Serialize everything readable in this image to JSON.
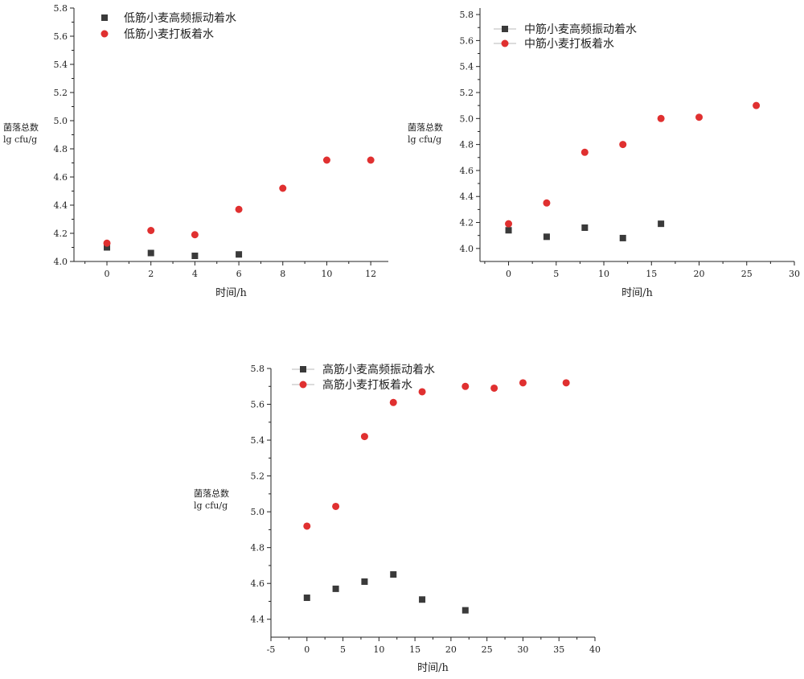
{
  "colors": {
    "series_sq": "#3a3a3a",
    "series_dot": "#e03030",
    "axis": "#222222",
    "legend_line": "#b8b8b8"
  },
  "chart_data": [
    {
      "id": "chart-1",
      "type": "scatter",
      "xlabel": "时间/h",
      "ylabel_lines": [
        "菌落总数",
        "lg cfu/g"
      ],
      "xlim": [
        -1.5,
        12.8
      ],
      "ylim": [
        4.0,
        5.8
      ],
      "xticks": [
        0,
        2,
        4,
        6,
        8,
        10,
        12
      ],
      "yticks": [
        4.0,
        4.2,
        4.4,
        4.6,
        4.8,
        5.0,
        5.2,
        5.4,
        5.6,
        5.8
      ],
      "legend_position": "top-left",
      "legend_has_line": false,
      "series": [
        {
          "name": "低筋小麦高频振动着水",
          "marker": "square",
          "color": "#3a3a3a",
          "x": [
            0,
            2,
            4,
            6
          ],
          "y": [
            4.1,
            4.06,
            4.04,
            4.05
          ]
        },
        {
          "name": "低筋小麦打板着水",
          "marker": "circle",
          "color": "#e03030",
          "x": [
            0,
            2,
            4,
            6,
            8,
            10,
            12
          ],
          "y": [
            4.13,
            4.22,
            4.19,
            4.37,
            4.52,
            4.72,
            4.72
          ]
        }
      ]
    },
    {
      "id": "chart-2",
      "type": "scatter",
      "xlabel": "时间/h",
      "ylabel_lines": [
        "菌落总数",
        "lg cfu/g"
      ],
      "xlim": [
        -3,
        30
      ],
      "ylim": [
        3.9,
        5.85
      ],
      "xticks": [
        0,
        5,
        10,
        15,
        20,
        25,
        30
      ],
      "yticks": [
        4.0,
        4.2,
        4.4,
        4.6,
        4.8,
        5.0,
        5.2,
        5.4,
        5.6,
        5.8
      ],
      "legend_position": "top-left",
      "legend_has_line": true,
      "series": [
        {
          "name": "中筋小麦高频振动着水",
          "marker": "square",
          "color": "#3a3a3a",
          "x": [
            0,
            4,
            8,
            12,
            16
          ],
          "y": [
            4.14,
            4.09,
            4.16,
            4.08,
            4.19
          ]
        },
        {
          "name": "中筋小麦打板着水",
          "marker": "circle",
          "color": "#e03030",
          "x": [
            0,
            4,
            8,
            12,
            16,
            20,
            26
          ],
          "y": [
            4.19,
            4.35,
            4.74,
            4.8,
            5.0,
            5.01,
            5.1
          ]
        }
      ]
    },
    {
      "id": "chart-3",
      "type": "scatter",
      "xlabel": "时间/h",
      "ylabel_lines": [
        "菌落总数",
        "lg cfu/g"
      ],
      "xlim": [
        -5,
        40
      ],
      "ylim": [
        4.3,
        5.8
      ],
      "xticks": [
        -5,
        0,
        5,
        10,
        15,
        20,
        25,
        30,
        35,
        40
      ],
      "yticks": [
        4.4,
        4.6,
        4.8,
        5.0,
        5.2,
        5.4,
        5.6,
        5.8
      ],
      "legend_position": "top-left",
      "legend_has_line": true,
      "series": [
        {
          "name": "高筋小麦高频振动着水",
          "marker": "square",
          "color": "#3a3a3a",
          "x": [
            0,
            4,
            8,
            12,
            16,
            22
          ],
          "y": [
            4.52,
            4.57,
            4.61,
            4.65,
            4.51,
            4.45
          ]
        },
        {
          "name": "高筋小麦打板着水",
          "marker": "circle",
          "color": "#e03030",
          "x": [
            0,
            4,
            8,
            12,
            16,
            22,
            26,
            30,
            36
          ],
          "y": [
            4.92,
            5.03,
            5.42,
            5.61,
            5.67,
            5.7,
            5.69,
            5.72,
            5.72
          ]
        }
      ]
    }
  ]
}
